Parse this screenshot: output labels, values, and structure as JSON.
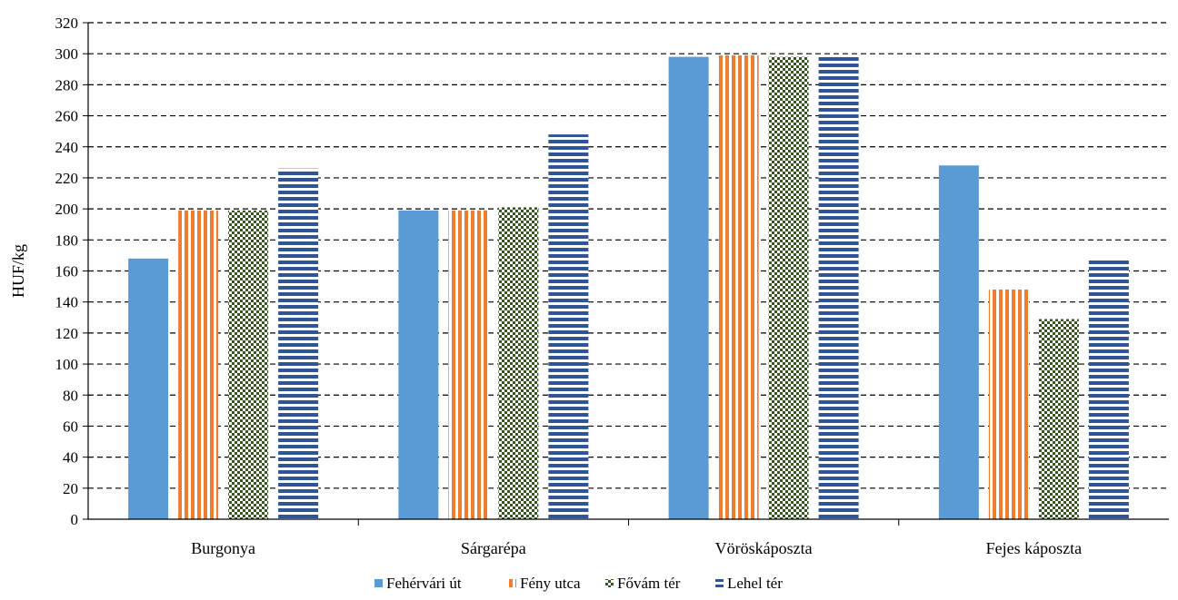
{
  "chart_data": {
    "type": "bar",
    "title": "",
    "xlabel": "",
    "ylabel": "HUF/kg",
    "ylim": [
      0,
      320
    ],
    "ytick_step": 20,
    "grid": "horizontal-dashed",
    "legend_position": "bottom",
    "categories": [
      "Burgonya",
      "Sárgarépa",
      "Vöröskáposzta",
      "Fejes káposzta"
    ],
    "series": [
      {
        "name": "Fehérvári út",
        "values": [
          168,
          199,
          298,
          228
        ],
        "color": "#5b9bd5",
        "pattern": "solid"
      },
      {
        "name": "Fény utca",
        "values": [
          199,
          199,
          299,
          148
        ],
        "color": "#ed7d31",
        "pattern": "vertical-stripes"
      },
      {
        "name": "Fővám tér",
        "values": [
          199,
          201,
          298,
          129
        ],
        "color": "#375623",
        "pattern": "checker"
      },
      {
        "name": "Lehel tér",
        "values": [
          226,
          248,
          299,
          168
        ],
        "color": "#2f5597",
        "pattern": "horizontal-stripes"
      }
    ]
  }
}
